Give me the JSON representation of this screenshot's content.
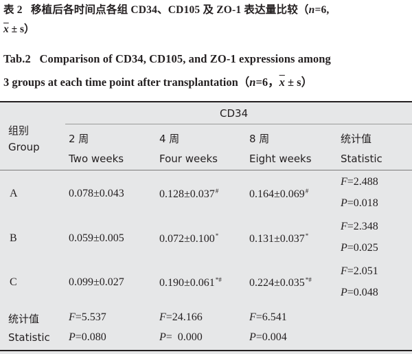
{
  "caption": {
    "cn_line1_label": "表 2",
    "cn_line1_text": "移植后各时间点各组 CD34、CD105 及 ZO-1 表达量比较（",
    "cn_line1_n": "n",
    "cn_line1_tail": "=6,",
    "cn_line2_x": "x",
    "cn_line2_tail": " ± s）",
    "en_line1_label": "Tab.2",
    "en_line1_text": "Comparison of CD34, CD105, and ZO-1 expressions among",
    "en_line2_text": "3 groups  at each time point after transplantation（",
    "en_line2_n": "n",
    "en_line2_mid": "=6，",
    "en_line2_x": "x",
    "en_line2_tail": " ± s）"
  },
  "table": {
    "group_header_cn": "组别",
    "group_header_en": "Group",
    "span_header": "CD34",
    "columns": [
      {
        "cn": "2 周",
        "en": "Two weeks"
      },
      {
        "cn": "4 周",
        "en": "Four weeks"
      },
      {
        "cn": "8 周",
        "en": "Eight weeks"
      },
      {
        "cn": "统计值",
        "en": "Statistic"
      }
    ],
    "rows": [
      {
        "group": "A",
        "w2": "0.078±0.043",
        "w4": "0.128±0.037",
        "w4_sup": "#",
        "w8": "0.164±0.069",
        "w8_sup": "#",
        "f_label": "F",
        "f_val": "=2.488",
        "p_label": "P",
        "p_val": "=0.018"
      },
      {
        "group": "B",
        "w2": "0.059±0.005",
        "w4": "0.072±0.100",
        "w4_sup": "*",
        "w8": "0.131±0.037",
        "w8_sup": "*",
        "f_label": "F",
        "f_val": "=2.348",
        "p_label": "P",
        "p_val": "=0.025"
      },
      {
        "group": "C",
        "w2": "0.099±0.027",
        "w4": "0.190±0.061",
        "w4_sup": "*#",
        "w8": "0.224±0.035",
        "w8_sup": "*#",
        "f_label": "F",
        "f_val": "=2.051",
        "p_label": "P",
        "p_val": "=0.048"
      }
    ],
    "stat_row": {
      "label_cn": "统计值",
      "label_en": "Statistic",
      "f": [
        {
          "l": "F",
          "v": "=5.537"
        },
        {
          "l": "F",
          "v": "=24.166"
        },
        {
          "l": "F",
          "v": "=6.541"
        }
      ],
      "p": [
        {
          "l": "P",
          "v": "=0.080"
        },
        {
          "l": "P",
          "v": "=  0.000"
        },
        {
          "l": "P",
          "v": "=0.004"
        }
      ]
    }
  }
}
